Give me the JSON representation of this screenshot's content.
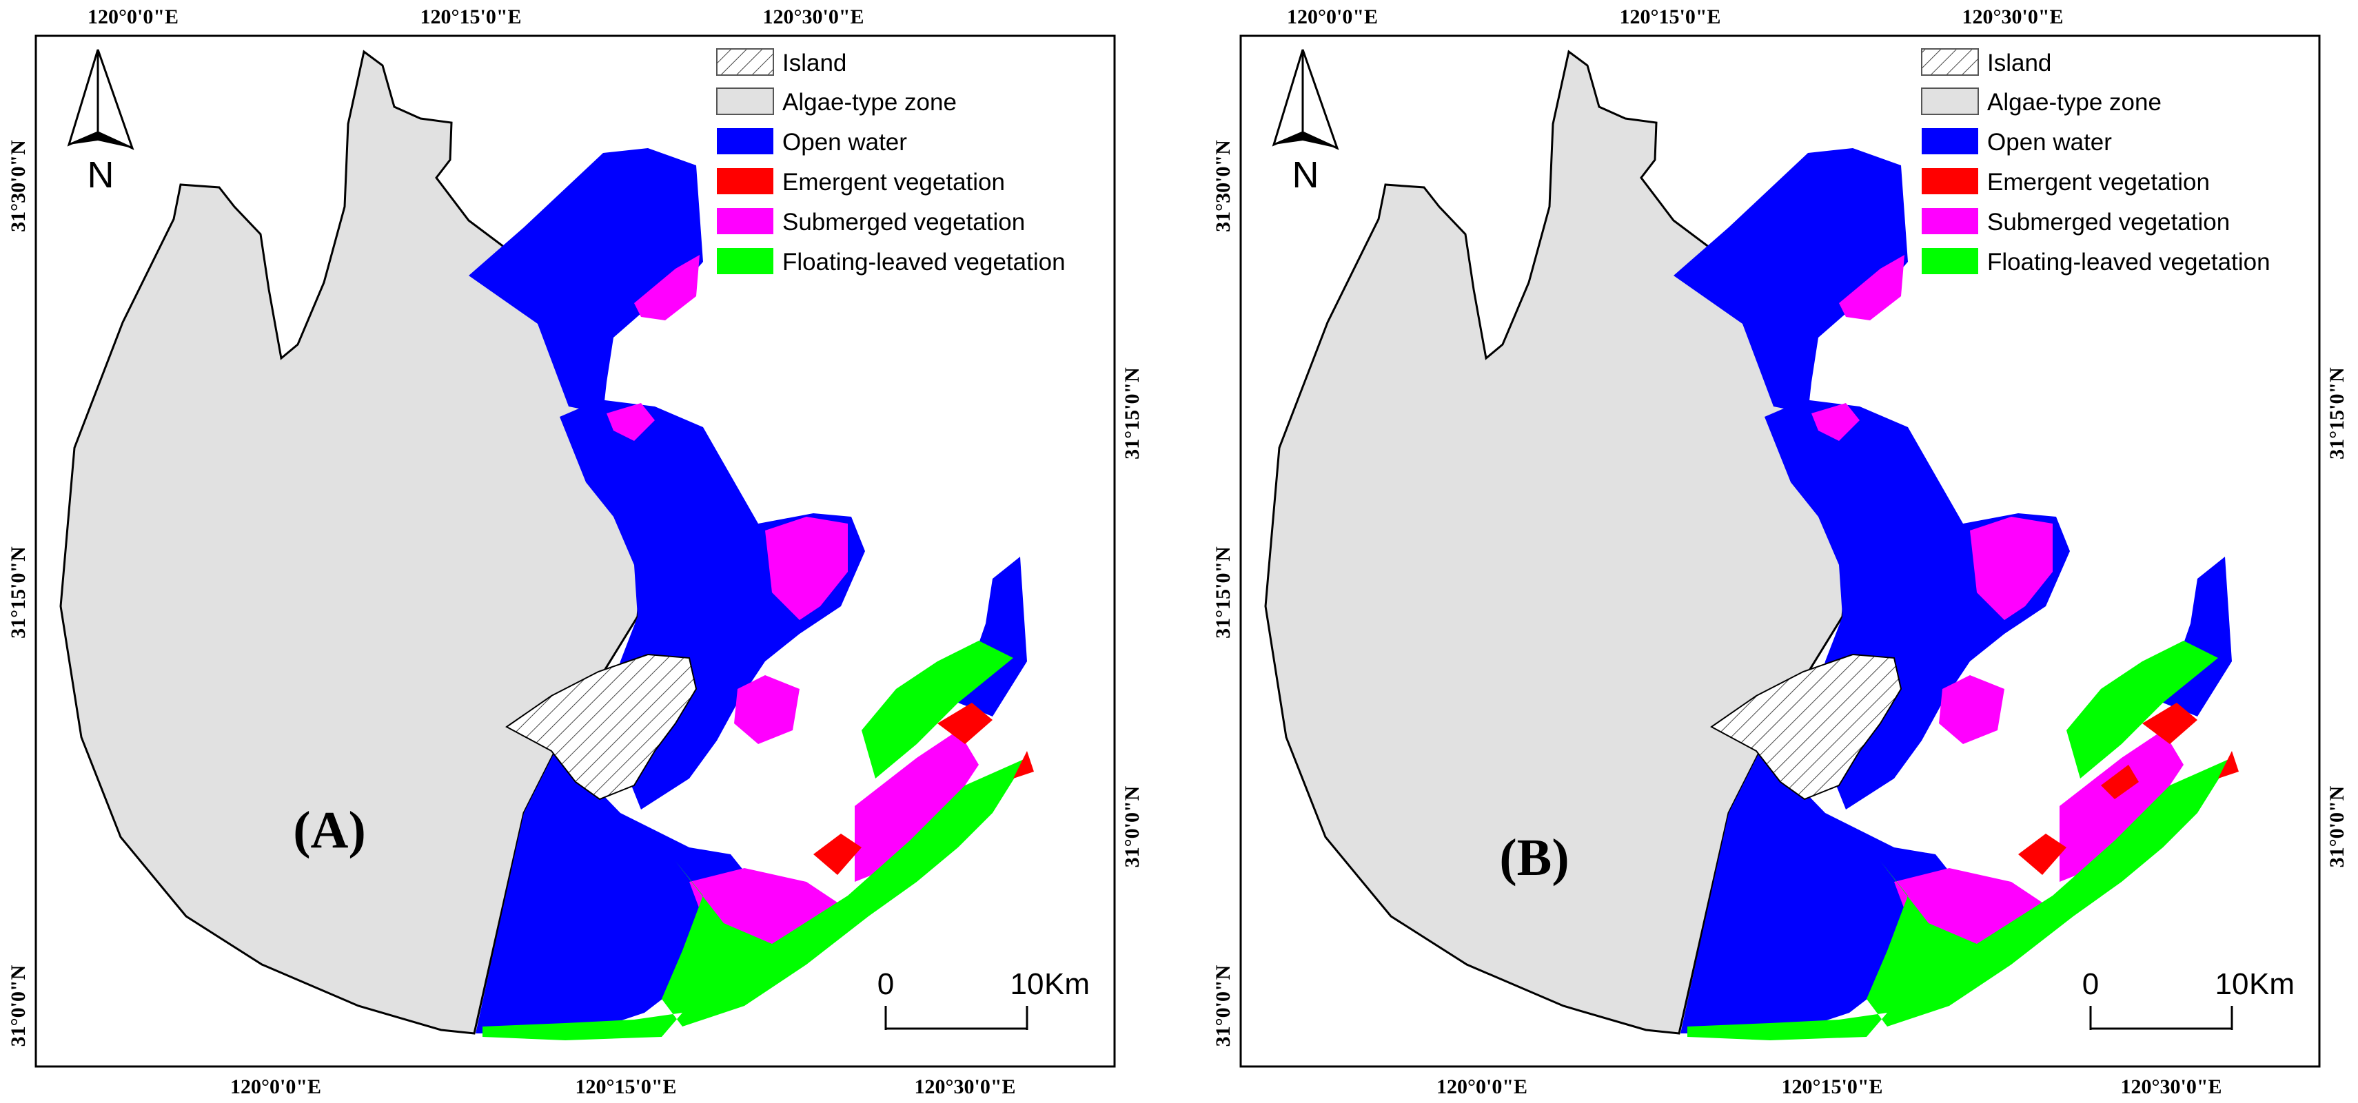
{
  "panels": [
    {
      "id": "A",
      "label_open": "(",
      "label_letter": "A",
      "label_close": ")",
      "top_axis": [
        "120°0'0\"E",
        "120°15'0\"E",
        "120°30'0\"E"
      ],
      "bottom_axis": [
        "120°0'0\"E",
        "120°15'0\"E",
        "120°30'0\"E"
      ],
      "left_axis": [
        "31°30'0\"N",
        "31°15'0\"N",
        "31°0'0\"N"
      ],
      "right_axis": [
        "31°15'0\"N",
        "31°0'0\"N"
      ]
    },
    {
      "id": "B",
      "label_open": "(",
      "label_letter": "B",
      "label_close": ")",
      "top_axis": [
        "120°0'0\"E",
        "120°15'0\"E",
        "120°30'0\"E"
      ],
      "bottom_axis": [
        "120°0'0\"E",
        "120°15'0\"E",
        "120°30'0\"E"
      ],
      "left_axis": [
        "31°30'0\"N",
        "31°15'0\"N",
        "31°0'0\"N"
      ],
      "right_axis": [
        "31°15'0\"N",
        "31°0'0\"N"
      ]
    }
  ],
  "legend": [
    {
      "label": "Island",
      "color": "#ffffff",
      "pattern": "hatch"
    },
    {
      "label": "Algae-type zone",
      "color": "#e1e1e1"
    },
    {
      "label": "Open water",
      "color": "#0000ff"
    },
    {
      "label": "Emergent vegetation",
      "color": "#ff0000"
    },
    {
      "label": "Submerged vegetation",
      "color": "#ff00ff"
    },
    {
      "label": "Floating-leaved vegetation",
      "color": "#00ff00"
    }
  ],
  "north_arrow": {
    "letter": "N",
    "icon": "north-arrow-icon"
  },
  "scale_bar": {
    "start": "0",
    "end": "10",
    "unit": "Km"
  }
}
